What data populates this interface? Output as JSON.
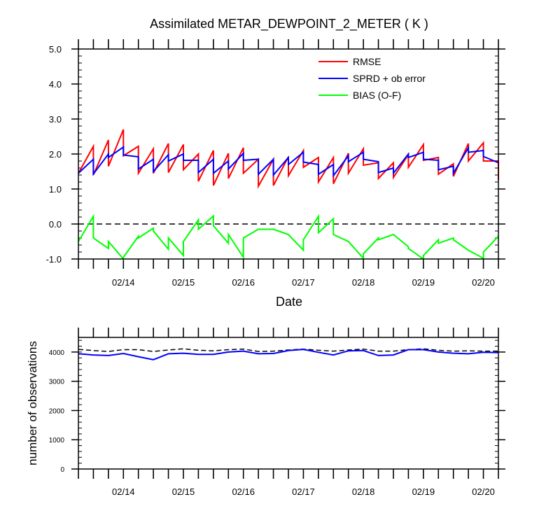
{
  "chart_data": [
    {
      "type": "line",
      "title": "Assimilated METAR_DEWPOINT_2_METER ( K )",
      "xlabel": "Date",
      "ylabel": "",
      "x_ticks": [
        "02/14",
        "02/15",
        "02/16",
        "02/17",
        "02/18",
        "02/19",
        "02/20"
      ],
      "xlim_days": [
        13.25,
        20.25
      ],
      "y_ticks": [
        "-1.0",
        "0.0",
        "1.0",
        "2.0",
        "3.0",
        "4.0",
        "5.0"
      ],
      "ylim": [
        -1.0,
        5.0
      ],
      "reference_line": 0.0,
      "legend_position": "top-right",
      "colors": {
        "rmse": "#ff0000",
        "sprd": "#0000ff",
        "bias": "#00ff00",
        "reference": "#000000"
      },
      "series": [
        {
          "name": "RMSE",
          "key": "rmse",
          "points": [
            [
              13.25,
              1.45
            ],
            [
              13.5,
              2.22
            ],
            [
              13.5,
              1.4
            ],
            [
              13.75,
              2.4
            ],
            [
              13.75,
              1.65
            ],
            [
              14.0,
              2.7
            ],
            [
              14.0,
              1.95
            ],
            [
              14.25,
              2.22
            ],
            [
              14.25,
              1.45
            ],
            [
              14.5,
              2.15
            ],
            [
              14.5,
              1.45
            ],
            [
              14.75,
              2.3
            ],
            [
              14.75,
              1.47
            ],
            [
              15.0,
              2.27
            ],
            [
              15.0,
              1.55
            ],
            [
              15.25,
              2.0
            ],
            [
              15.25,
              1.22
            ],
            [
              15.5,
              2.1
            ],
            [
              15.5,
              1.1
            ],
            [
              15.75,
              2.02
            ],
            [
              15.75,
              1.3
            ],
            [
              16.0,
              2.18
            ],
            [
              16.0,
              1.45
            ],
            [
              16.25,
              1.85
            ],
            [
              16.25,
              1.08
            ],
            [
              16.5,
              1.85
            ],
            [
              16.5,
              1.1
            ],
            [
              16.75,
              1.92
            ],
            [
              16.75,
              1.38
            ],
            [
              17.0,
              2.1
            ],
            [
              17.0,
              1.62
            ],
            [
              17.25,
              1.9
            ],
            [
              17.25,
              1.2
            ],
            [
              17.5,
              1.9
            ],
            [
              17.5,
              1.15
            ],
            [
              17.75,
              2.02
            ],
            [
              17.75,
              1.45
            ],
            [
              18.0,
              2.15
            ],
            [
              18.0,
              1.68
            ],
            [
              18.25,
              1.75
            ],
            [
              18.25,
              1.3
            ],
            [
              18.5,
              1.75
            ],
            [
              18.5,
              1.33
            ],
            [
              18.75,
              1.98
            ],
            [
              18.75,
              1.62
            ],
            [
              19.0,
              2.27
            ],
            [
              19.0,
              1.82
            ],
            [
              19.25,
              1.9
            ],
            [
              19.25,
              1.42
            ],
            [
              19.5,
              1.72
            ],
            [
              19.5,
              1.36
            ],
            [
              19.75,
              2.3
            ],
            [
              19.75,
              1.8
            ],
            [
              20.0,
              2.32
            ],
            [
              20.0,
              1.8
            ],
            [
              20.25,
              1.8
            ],
            [
              20.25,
              1.25
            ]
          ]
        },
        {
          "name": "SPRD + ob error",
          "key": "sprd",
          "points": [
            [
              13.25,
              1.45
            ],
            [
              13.5,
              1.85
            ],
            [
              13.5,
              1.43
            ],
            [
              13.75,
              2.0
            ],
            [
              13.75,
              1.9
            ],
            [
              14.0,
              2.2
            ],
            [
              14.0,
              1.97
            ],
            [
              14.25,
              1.92
            ],
            [
              14.25,
              1.57
            ],
            [
              14.5,
              1.85
            ],
            [
              14.5,
              1.5
            ],
            [
              14.75,
              1.98
            ],
            [
              14.75,
              1.8
            ],
            [
              15.0,
              2.0
            ],
            [
              15.0,
              1.82
            ],
            [
              15.25,
              1.82
            ],
            [
              15.25,
              1.47
            ],
            [
              15.5,
              1.85
            ],
            [
              15.5,
              1.45
            ],
            [
              15.75,
              1.8
            ],
            [
              15.75,
              1.57
            ],
            [
              16.0,
              2.02
            ],
            [
              16.0,
              1.82
            ],
            [
              16.25,
              1.85
            ],
            [
              16.25,
              1.42
            ],
            [
              16.5,
              1.85
            ],
            [
              16.5,
              1.4
            ],
            [
              16.75,
              1.9
            ],
            [
              16.75,
              1.7
            ],
            [
              17.0,
              2.05
            ],
            [
              17.0,
              1.77
            ],
            [
              17.25,
              1.7
            ],
            [
              17.25,
              1.42
            ],
            [
              17.5,
              1.7
            ],
            [
              17.5,
              1.38
            ],
            [
              17.75,
              1.95
            ],
            [
              17.75,
              1.78
            ],
            [
              18.0,
              2.05
            ],
            [
              18.0,
              1.85
            ],
            [
              18.25,
              1.78
            ],
            [
              18.25,
              1.47
            ],
            [
              18.5,
              1.6
            ],
            [
              18.5,
              1.45
            ],
            [
              18.75,
              2.0
            ],
            [
              18.75,
              1.9
            ],
            [
              19.0,
              2.05
            ],
            [
              19.0,
              1.85
            ],
            [
              19.25,
              1.82
            ],
            [
              19.25,
              1.55
            ],
            [
              19.5,
              1.65
            ],
            [
              19.5,
              1.45
            ],
            [
              19.75,
              2.18
            ],
            [
              19.75,
              2.05
            ],
            [
              20.0,
              2.1
            ],
            [
              20.0,
              1.93
            ],
            [
              20.25,
              1.75
            ]
          ]
        },
        {
          "name": "BIAS (O-F)",
          "key": "bias",
          "points": [
            [
              13.25,
              -0.5
            ],
            [
              13.5,
              0.22
            ],
            [
              13.5,
              -0.4
            ],
            [
              13.75,
              -0.7
            ],
            [
              13.75,
              -0.5
            ],
            [
              14.0,
              -1.0
            ],
            [
              14.0,
              -0.95
            ],
            [
              14.25,
              -0.35
            ],
            [
              14.25,
              -0.4
            ],
            [
              14.5,
              -0.12
            ],
            [
              14.5,
              -0.2
            ],
            [
              14.75,
              -0.72
            ],
            [
              14.75,
              -0.4
            ],
            [
              15.0,
              -0.9
            ],
            [
              15.0,
              -0.5
            ],
            [
              15.25,
              0.12
            ],
            [
              15.25,
              -0.15
            ],
            [
              15.5,
              0.23
            ],
            [
              15.5,
              -0.05
            ],
            [
              15.75,
              -0.55
            ],
            [
              15.75,
              -0.3
            ],
            [
              16.0,
              -0.95
            ],
            [
              16.0,
              -0.4
            ],
            [
              16.25,
              -0.15
            ],
            [
              16.5,
              -0.15
            ],
            [
              16.75,
              -0.3
            ],
            [
              17.0,
              -0.75
            ],
            [
              17.0,
              -0.45
            ],
            [
              17.25,
              0.22
            ],
            [
              17.25,
              -0.25
            ],
            [
              17.5,
              0.15
            ],
            [
              17.5,
              -0.3
            ],
            [
              17.75,
              -0.5
            ],
            [
              18.0,
              -0.98
            ],
            [
              18.0,
              -0.85
            ],
            [
              18.25,
              -0.4
            ],
            [
              18.25,
              -0.45
            ],
            [
              18.5,
              -0.3
            ],
            [
              18.75,
              -0.65
            ],
            [
              18.75,
              -0.7
            ],
            [
              19.0,
              -1.0
            ],
            [
              19.0,
              -0.9
            ],
            [
              19.25,
              -0.45
            ],
            [
              19.25,
              -0.55
            ],
            [
              19.5,
              -0.4
            ],
            [
              19.5,
              -0.45
            ],
            [
              19.75,
              -0.75
            ],
            [
              20.0,
              -0.98
            ],
            [
              20.0,
              -0.8
            ],
            [
              20.25,
              -0.35
            ]
          ]
        }
      ]
    },
    {
      "type": "line",
      "title": "",
      "xlabel": "",
      "ylabel": "number of observations",
      "x_ticks": [
        "02/14",
        "02/15",
        "02/16",
        "02/17",
        "02/18",
        "02/19",
        "02/20"
      ],
      "xlim_days": [
        13.25,
        20.25
      ],
      "y_ticks": [
        "0",
        "1000",
        "2000",
        "3000",
        "4000"
      ],
      "ylim": [
        0,
        4500
      ],
      "colors": {
        "used": "#0000ff",
        "possible": "#000000"
      },
      "series": [
        {
          "key": "possible",
          "style": "dashed",
          "points": [
            [
              13.25,
              4090
            ],
            [
              13.5,
              4050
            ],
            [
              13.75,
              4020
            ],
            [
              14.0,
              4080
            ],
            [
              14.25,
              4080
            ],
            [
              14.5,
              4020
            ],
            [
              14.75,
              4070
            ],
            [
              15.0,
              4110
            ],
            [
              15.25,
              4060
            ],
            [
              15.5,
              4040
            ],
            [
              15.75,
              4080
            ],
            [
              16.0,
              4100
            ],
            [
              16.25,
              4020
            ],
            [
              16.5,
              4030
            ],
            [
              16.75,
              4070
            ],
            [
              17.0,
              4100
            ],
            [
              17.25,
              4060
            ],
            [
              17.5,
              4030
            ],
            [
              17.75,
              4070
            ],
            [
              18.0,
              4100
            ],
            [
              18.25,
              4030
            ],
            [
              18.5,
              4030
            ],
            [
              18.75,
              4080
            ],
            [
              19.0,
              4110
            ],
            [
              19.25,
              4060
            ],
            [
              19.5,
              4030
            ],
            [
              19.75,
              4040
            ],
            [
              20.0,
              4030
            ],
            [
              20.25,
              4030
            ]
          ]
        },
        {
          "key": "used",
          "style": "solid",
          "points": [
            [
              13.25,
              3940
            ],
            [
              13.5,
              3900
            ],
            [
              13.75,
              3880
            ],
            [
              14.0,
              3950
            ],
            [
              14.25,
              3840
            ],
            [
              14.5,
              3740
            ],
            [
              14.75,
              3940
            ],
            [
              15.0,
              3960
            ],
            [
              15.25,
              3920
            ],
            [
              15.5,
              3920
            ],
            [
              15.75,
              4000
            ],
            [
              16.0,
              4030
            ],
            [
              16.25,
              3940
            ],
            [
              16.5,
              3950
            ],
            [
              16.75,
              4050
            ],
            [
              17.0,
              4090
            ],
            [
              17.25,
              3990
            ],
            [
              17.5,
              3900
            ],
            [
              17.75,
              4040
            ],
            [
              18.0,
              4050
            ],
            [
              18.25,
              3880
            ],
            [
              18.5,
              3900
            ],
            [
              18.75,
              4080
            ],
            [
              19.0,
              4080
            ],
            [
              19.25,
              4000
            ],
            [
              19.5,
              3960
            ],
            [
              19.75,
              3940
            ],
            [
              20.0,
              3990
            ],
            [
              20.25,
              3980
            ]
          ]
        }
      ]
    }
  ]
}
